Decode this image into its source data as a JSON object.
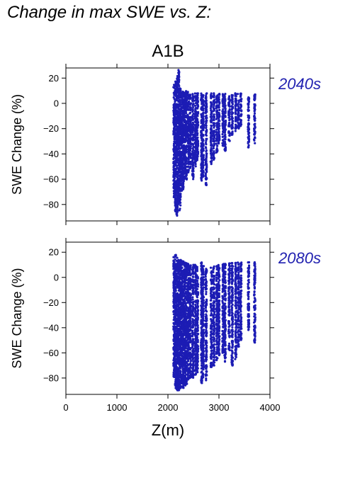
{
  "title": "Change in max SWE vs. Z:",
  "scenario": "A1B",
  "colors": {
    "points": "#1c1cb4",
    "period_label": "#2121b0",
    "frame": "#000000"
  },
  "chart_data": [
    {
      "type": "scatter",
      "panel_label": "2040s",
      "ylabel": "SWE Change (%)",
      "xlabel": "",
      "xlim": [
        0,
        4000
      ],
      "ylim": [
        -93,
        28
      ],
      "xticks": [
        0,
        1000,
        2000,
        3000,
        4000
      ],
      "yticks": [
        -80,
        -60,
        -40,
        -20,
        0,
        20
      ],
      "xtick_labels_shown": false,
      "grid": false,
      "columns": [
        {
          "x": 2120,
          "ymin": -75,
          "ymax": 15
        },
        {
          "x": 2150,
          "ymin": -86,
          "ymax": 18
        },
        {
          "x": 2180,
          "ymin": -89,
          "ymax": 22
        },
        {
          "x": 2210,
          "ymin": -80,
          "ymax": 28
        },
        {
          "x": 2240,
          "ymin": -85,
          "ymax": 12
        },
        {
          "x": 2270,
          "ymin": -70,
          "ymax": 10
        },
        {
          "x": 2300,
          "ymin": -68,
          "ymax": 10
        },
        {
          "x": 2330,
          "ymin": -60,
          "ymax": 9
        },
        {
          "x": 2360,
          "ymin": -62,
          "ymax": 10
        },
        {
          "x": 2400,
          "ymin": -55,
          "ymax": 9
        },
        {
          "x": 2440,
          "ymin": -52,
          "ymax": 8
        },
        {
          "x": 2490,
          "ymin": -60,
          "ymax": 9
        },
        {
          "x": 2540,
          "ymin": -50,
          "ymax": 8
        },
        {
          "x": 2580,
          "ymin": -45,
          "ymax": 8
        },
        {
          "x": 2660,
          "ymin": -62,
          "ymax": 8
        },
        {
          "x": 2690,
          "ymin": -58,
          "ymax": 7
        },
        {
          "x": 2750,
          "ymin": -65,
          "ymax": 8
        },
        {
          "x": 2850,
          "ymin": -48,
          "ymax": 8
        },
        {
          "x": 2900,
          "ymin": -45,
          "ymax": 8
        },
        {
          "x": 2960,
          "ymin": -40,
          "ymax": 8
        },
        {
          "x": 3000,
          "ymin": -32,
          "ymax": 8
        },
        {
          "x": 3080,
          "ymin": -34,
          "ymax": 8
        },
        {
          "x": 3120,
          "ymin": -38,
          "ymax": 8
        },
        {
          "x": 3200,
          "ymin": -30,
          "ymax": 7
        },
        {
          "x": 3260,
          "ymin": -25,
          "ymax": 7
        },
        {
          "x": 3330,
          "ymin": -22,
          "ymax": 8
        },
        {
          "x": 3380,
          "ymin": -20,
          "ymax": 8
        },
        {
          "x": 3430,
          "ymin": -18,
          "ymax": 8
        },
        {
          "x": 3580,
          "ymin": -35,
          "ymax": 7
        },
        {
          "x": 3700,
          "ymin": -33,
          "ymax": 8
        }
      ]
    },
    {
      "type": "scatter",
      "panel_label": "2080s",
      "ylabel": "SWE Change (%)",
      "xlabel": "Z(m)",
      "xlim": [
        0,
        4000
      ],
      "ylim": [
        -93,
        28
      ],
      "xticks": [
        0,
        1000,
        2000,
        3000,
        4000
      ],
      "yticks": [
        -80,
        -60,
        -40,
        -20,
        0,
        20
      ],
      "xtick_labels_shown": true,
      "grid": false,
      "columns": [
        {
          "x": 2120,
          "ymin": -80,
          "ymax": 17
        },
        {
          "x": 2150,
          "ymin": -88,
          "ymax": 19
        },
        {
          "x": 2180,
          "ymin": -90,
          "ymax": 16
        },
        {
          "x": 2210,
          "ymin": -90,
          "ymax": 15
        },
        {
          "x": 2240,
          "ymin": -89,
          "ymax": 14
        },
        {
          "x": 2270,
          "ymin": -87,
          "ymax": 13
        },
        {
          "x": 2300,
          "ymin": -88,
          "ymax": 13
        },
        {
          "x": 2330,
          "ymin": -86,
          "ymax": 12
        },
        {
          "x": 2360,
          "ymin": -85,
          "ymax": 12
        },
        {
          "x": 2400,
          "ymin": -82,
          "ymax": 11
        },
        {
          "x": 2440,
          "ymin": -80,
          "ymax": 10
        },
        {
          "x": 2490,
          "ymin": -80,
          "ymax": 10
        },
        {
          "x": 2540,
          "ymin": -78,
          "ymax": 10
        },
        {
          "x": 2580,
          "ymin": -76,
          "ymax": 9
        },
        {
          "x": 2660,
          "ymin": -84,
          "ymax": 12
        },
        {
          "x": 2690,
          "ymin": -80,
          "ymax": 9
        },
        {
          "x": 2750,
          "ymin": -82,
          "ymax": 8
        },
        {
          "x": 2850,
          "ymin": -72,
          "ymax": 8
        },
        {
          "x": 2900,
          "ymin": -70,
          "ymax": 9
        },
        {
          "x": 2960,
          "ymin": -68,
          "ymax": 10
        },
        {
          "x": 3000,
          "ymin": -62,
          "ymax": 10
        },
        {
          "x": 3080,
          "ymin": -60,
          "ymax": 11
        },
        {
          "x": 3120,
          "ymin": -68,
          "ymax": 11
        },
        {
          "x": 3200,
          "ymin": -58,
          "ymax": 12
        },
        {
          "x": 3260,
          "ymin": -70,
          "ymax": 12
        },
        {
          "x": 3330,
          "ymin": -65,
          "ymax": 12
        },
        {
          "x": 3380,
          "ymin": -56,
          "ymax": 12
        },
        {
          "x": 3430,
          "ymin": -50,
          "ymax": 12
        },
        {
          "x": 3580,
          "ymin": -43,
          "ymax": 12
        },
        {
          "x": 3700,
          "ymin": -52,
          "ymax": 12
        }
      ]
    }
  ]
}
